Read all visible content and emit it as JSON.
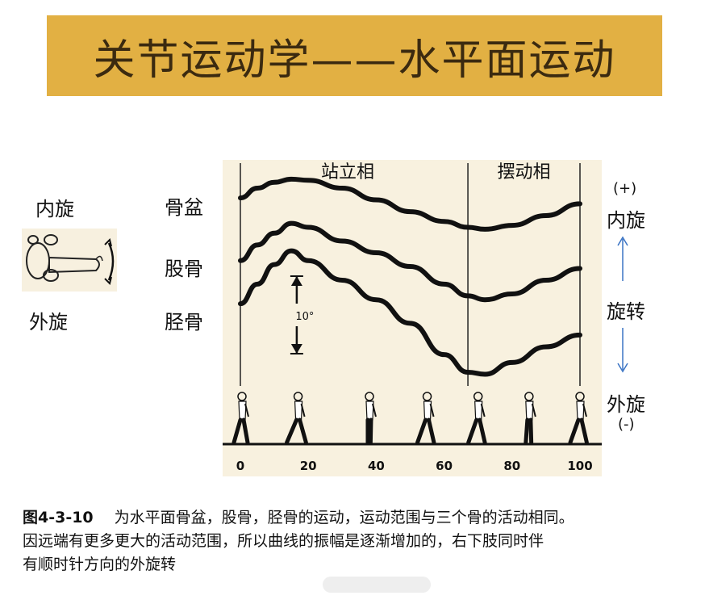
{
  "banner": {
    "title": "关节运动学——水平面运动"
  },
  "left_labels": {
    "internal": "内旋",
    "external": "外旋"
  },
  "row_labels": {
    "pelvis": "骨盆",
    "femur": "股骨",
    "tibia": "胫骨"
  },
  "right_axis": {
    "plus": "(+)",
    "internal": "内旋",
    "rotation": "旋转",
    "external": "外旋",
    "minus": "(-)"
  },
  "colors": {
    "banner": "#e2b043",
    "chart_bg": "#f8f1df",
    "curve": "#111111"
  },
  "chart_data": {
    "type": "line",
    "title": "",
    "xlabel": "",
    "ylabel": "",
    "xlim": [
      0,
      100
    ],
    "x_ticks": [
      "0",
      "20",
      "40",
      "60",
      "80",
      "100"
    ],
    "phases": [
      {
        "label": "站立相",
        "from": 0,
        "to": 67
      },
      {
        "label": "摆动相",
        "from": 67,
        "to": 100
      }
    ],
    "phase_boundary": 67,
    "scale_marker": {
      "label": "10°",
      "degrees": 10
    },
    "series": [
      {
        "name": "骨盆",
        "points": [
          [
            0,
            8
          ],
          [
            5,
            10.5
          ],
          [
            10,
            12
          ],
          [
            15,
            12.8
          ],
          [
            20,
            12.5
          ],
          [
            30,
            10.5
          ],
          [
            40,
            7.5
          ],
          [
            50,
            4.5
          ],
          [
            60,
            2
          ],
          [
            67,
            0.5
          ],
          [
            72,
            0
          ],
          [
            80,
            1
          ],
          [
            90,
            3.5
          ],
          [
            100,
            6.5
          ]
        ]
      },
      {
        "name": "股骨",
        "points": [
          [
            0,
            -8
          ],
          [
            5,
            -4
          ],
          [
            10,
            -1
          ],
          [
            15,
            1.5
          ],
          [
            20,
            0.5
          ],
          [
            30,
            -3
          ],
          [
            40,
            -6
          ],
          [
            50,
            -9.5
          ],
          [
            60,
            -14
          ],
          [
            67,
            -17
          ],
          [
            72,
            -18
          ],
          [
            80,
            -16.5
          ],
          [
            90,
            -13
          ],
          [
            100,
            -10
          ]
        ]
      },
      {
        "name": "胫骨",
        "points": [
          [
            0,
            -19
          ],
          [
            5,
            -14
          ],
          [
            10,
            -9
          ],
          [
            15,
            -5.5
          ],
          [
            20,
            -8
          ],
          [
            30,
            -13
          ],
          [
            40,
            -18
          ],
          [
            50,
            -24
          ],
          [
            60,
            -32
          ],
          [
            67,
            -36.5
          ],
          [
            72,
            -37
          ],
          [
            80,
            -34
          ],
          [
            90,
            -30
          ],
          [
            100,
            -27
          ]
        ]
      }
    ]
  },
  "caption": {
    "figure_no": "图4-3-10",
    "line1": "为水平面骨盆，股骨，胫骨的运动，运动范围与三个骨的活动相同。",
    "line2": "因远端有更多更大的活动范围，所以曲线的振幅是逐渐增加的，右下肢同时伴",
    "line3": "有顺时针方向的外旋转"
  }
}
